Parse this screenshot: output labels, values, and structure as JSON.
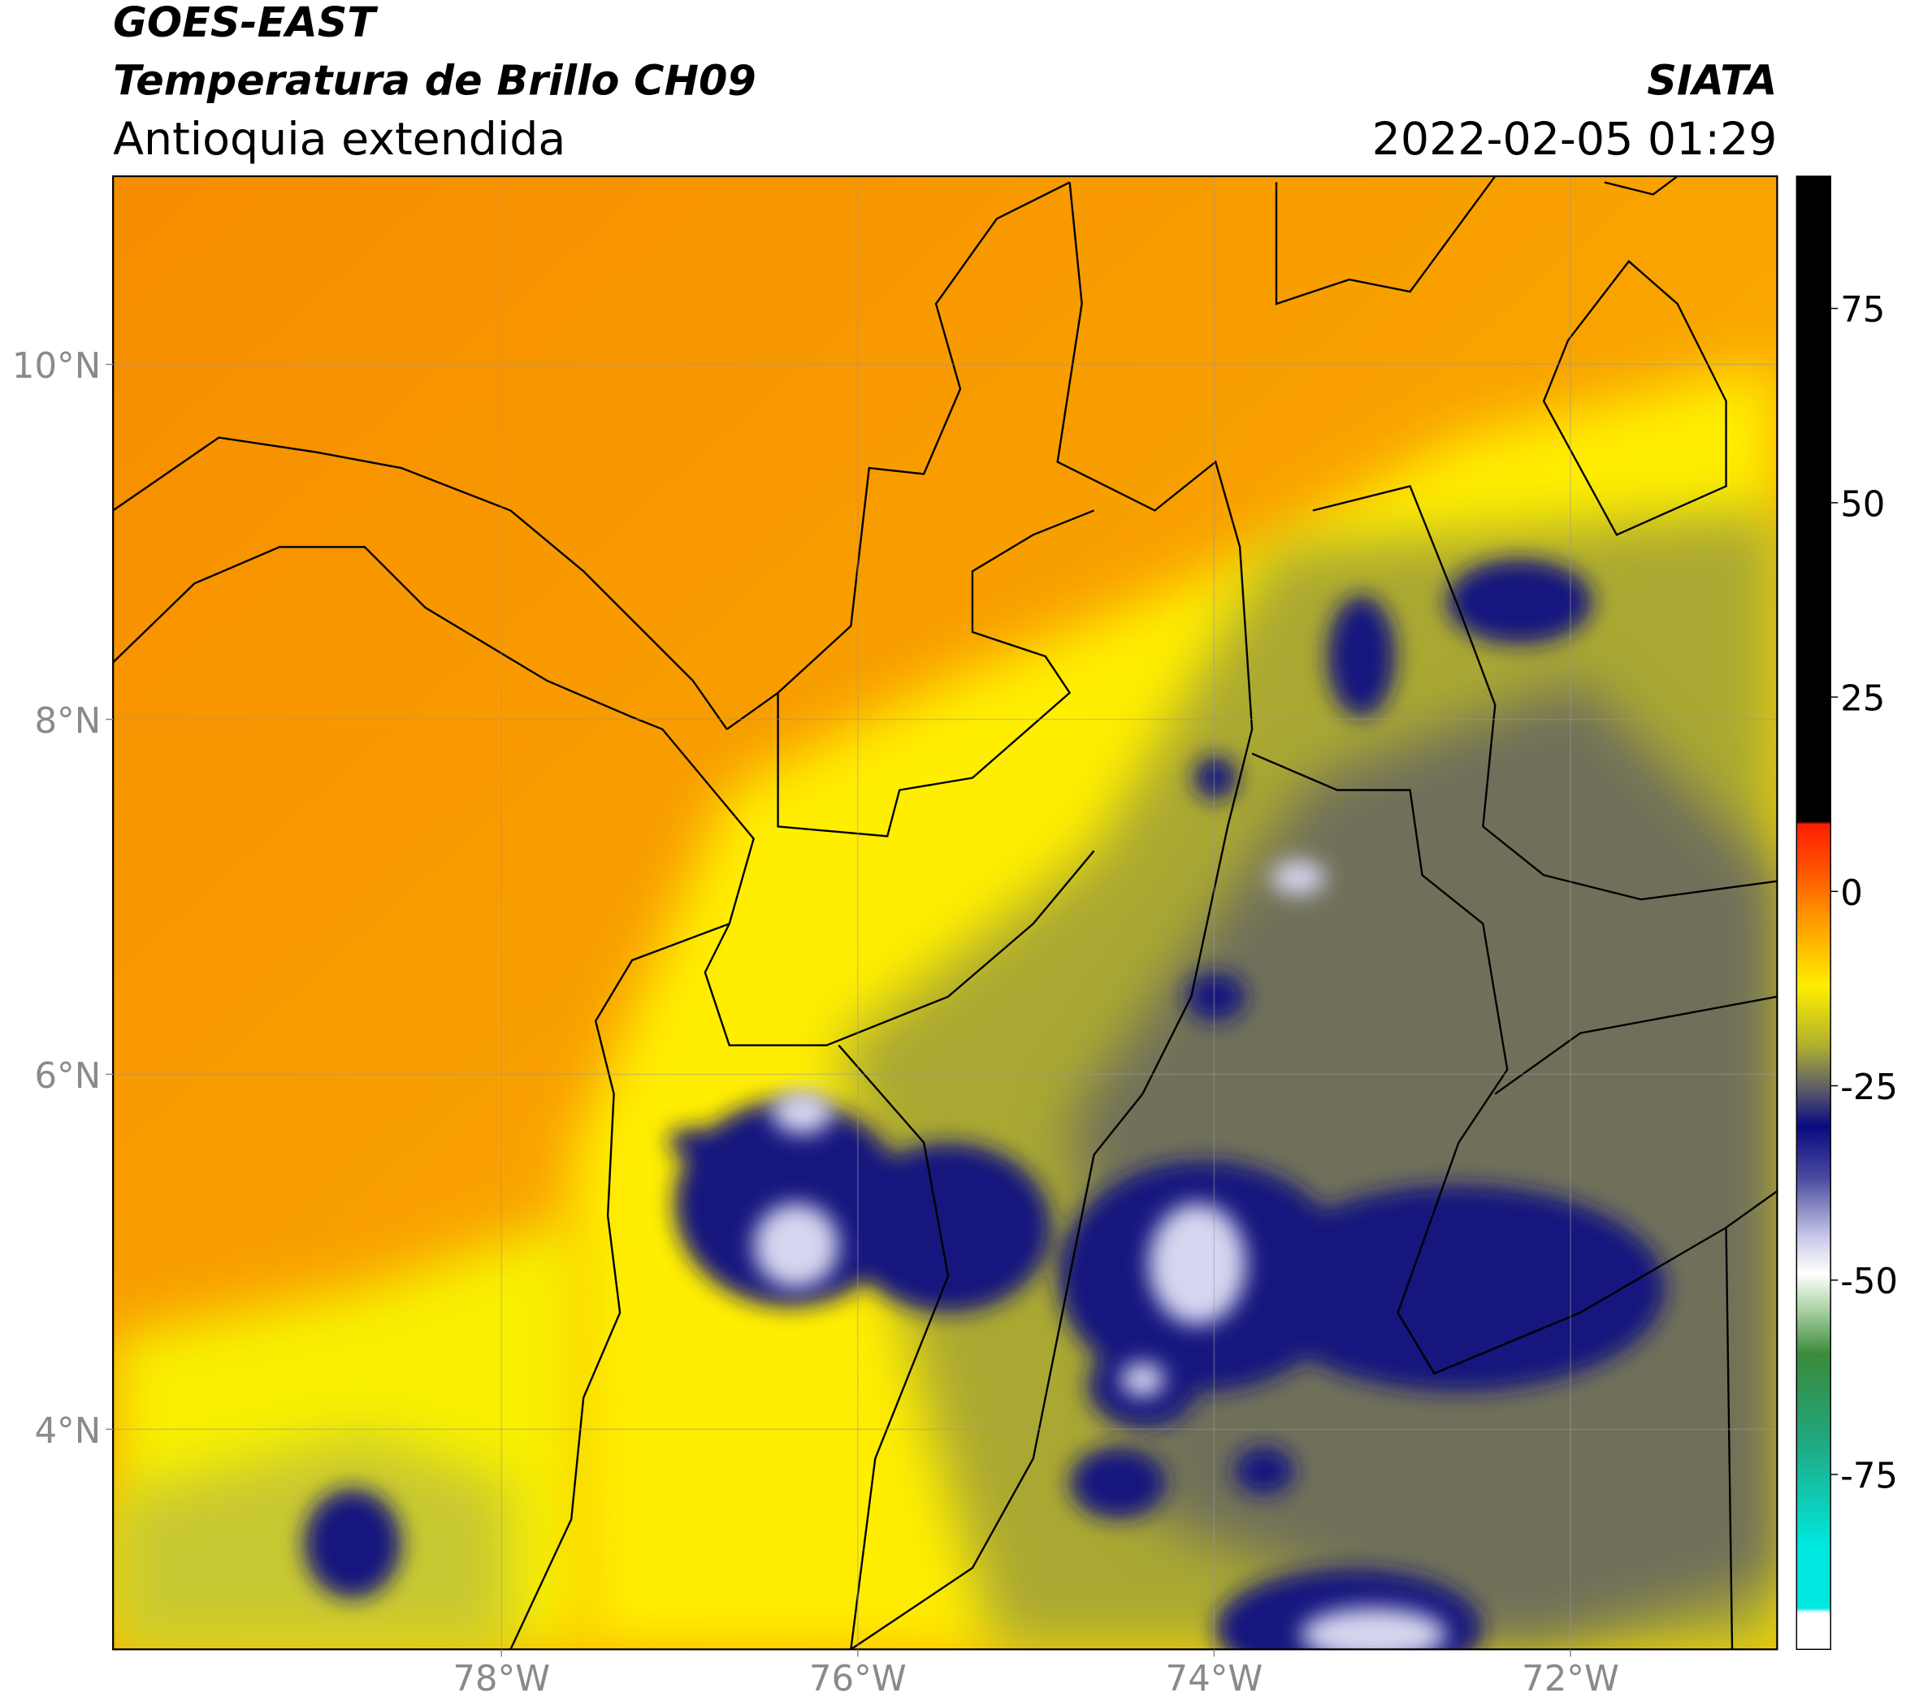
{
  "chart_data": {
    "type": "map",
    "title": "GOES-EAST",
    "subtitle": "Temperatura de Brillo CH09",
    "region": "Antioquia extendida",
    "source": "SIATA",
    "timestamp": "2022-02-05 01:29",
    "xlim": [
      -80.18,
      -70.84
    ],
    "ylim": [
      2.76,
      11.06
    ],
    "xticks": [
      {
        "value": -78,
        "label": "78°W"
      },
      {
        "value": -76,
        "label": "76°W"
      },
      {
        "value": -74,
        "label": "74°W"
      },
      {
        "value": -72,
        "label": "72°W"
      }
    ],
    "yticks": [
      {
        "value": 4,
        "label": "4°N"
      },
      {
        "value": 6,
        "label": "6°N"
      },
      {
        "value": 8,
        "label": "8°N"
      },
      {
        "value": 10,
        "label": "10°N"
      }
    ],
    "grid": true,
    "colorbar": {
      "lim": [
        -97.5,
        92
      ],
      "ticks": [
        -75,
        -50,
        -25,
        0,
        25,
        50,
        75
      ]
    }
  }
}
